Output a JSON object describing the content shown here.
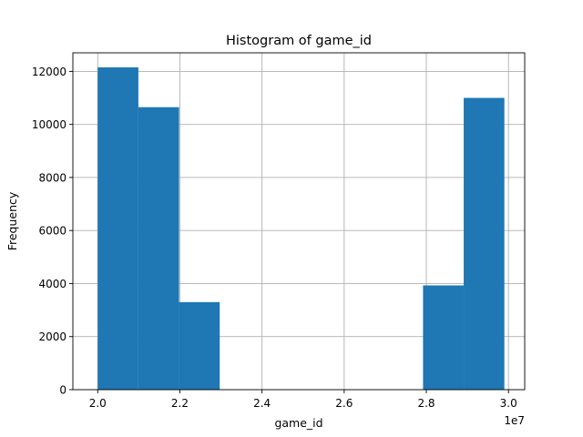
{
  "chart_data": {
    "type": "bar",
    "subtype": "histogram",
    "title": "Histogram of game_id",
    "xlabel": "game_id",
    "ylabel": "Frequency",
    "x_offset_label": "1e7",
    "x_ticks": [
      2.0,
      2.2,
      2.4,
      2.6,
      2.8,
      3.0
    ],
    "x_tick_labels": [
      "2.0",
      "2.2",
      "2.4",
      "2.6",
      "2.8",
      "3.0"
    ],
    "y_ticks": [
      0,
      2000,
      4000,
      6000,
      8000,
      10000,
      12000
    ],
    "y_tick_labels": [
      "0",
      "2000",
      "4000",
      "6000",
      "8000",
      "10000",
      "12000"
    ],
    "xlim": [
      1.9395,
      3.0395
    ],
    "ylim": [
      0,
      12700
    ],
    "bins": [
      {
        "x0": 2.0,
        "x1": 2.099,
        "value": 12150
      },
      {
        "x0": 2.099,
        "x1": 2.198,
        "value": 10650
      },
      {
        "x0": 2.198,
        "x1": 2.297,
        "value": 3300
      },
      {
        "x0": 2.297,
        "x1": 2.396,
        "value": 0
      },
      {
        "x0": 2.396,
        "x1": 2.495,
        "value": 0
      },
      {
        "x0": 2.495,
        "x1": 2.594,
        "value": 0
      },
      {
        "x0": 2.594,
        "x1": 2.693,
        "value": 0
      },
      {
        "x0": 2.693,
        "x1": 2.792,
        "value": 0
      },
      {
        "x0": 2.792,
        "x1": 2.891,
        "value": 3930
      },
      {
        "x0": 2.891,
        "x1": 2.99,
        "value": 11000
      }
    ],
    "bar_color": "#1f77b4",
    "grid": true,
    "grid_color": "#b0b0b0",
    "legend": false
  }
}
